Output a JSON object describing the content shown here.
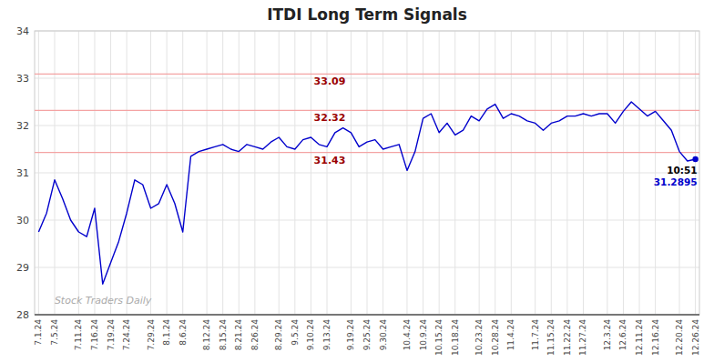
{
  "chart_data": {
    "type": "line",
    "title": "ITDI Long Term Signals",
    "categories": [
      "7.1.24",
      null,
      "7.5.24",
      null,
      null,
      "7.11.24",
      null,
      "7.16.24",
      null,
      "7.19.24",
      null,
      "7.24.24",
      null,
      null,
      "7.29.24",
      null,
      "8.1.24",
      null,
      "8.6.24",
      null,
      null,
      "8.12.24",
      null,
      "8.15.24",
      null,
      "8.21.24",
      null,
      "8.26.24",
      null,
      null,
      "8.29.24",
      null,
      "9.5.24",
      null,
      "9.10.24",
      null,
      "9.13.24",
      null,
      null,
      "9.19.24",
      null,
      "9.25.24",
      null,
      "9.30.24",
      null,
      null,
      "10.4.24",
      null,
      "10.9.24",
      null,
      "10.15.24",
      null,
      "10.18.24",
      null,
      null,
      "10.23.24",
      null,
      "10.28.24",
      null,
      "11.4.24",
      null,
      null,
      "11.7.24",
      null,
      "11.15.24",
      null,
      "11.22.24",
      null,
      "11.27.24",
      null,
      null,
      "12.3.24",
      null,
      "12.6.24",
      null,
      "12.11.24",
      null,
      "12.16.24",
      null,
      null,
      "12.20.24",
      null,
      "12.26.24"
    ],
    "values": [
      29.75,
      30.15,
      30.85,
      30.45,
      30.0,
      29.75,
      29.65,
      30.25,
      28.65,
      29.1,
      29.55,
      30.15,
      30.85,
      30.75,
      30.25,
      30.35,
      30.75,
      30.35,
      29.75,
      31.35,
      31.45,
      31.5,
      31.55,
      31.6,
      31.5,
      31.45,
      31.6,
      31.55,
      31.5,
      31.65,
      31.75,
      31.55,
      31.5,
      31.7,
      31.75,
      31.6,
      31.55,
      31.85,
      31.95,
      31.85,
      31.55,
      31.65,
      31.7,
      31.5,
      31.55,
      31.6,
      31.05,
      31.45,
      32.15,
      32.25,
      31.85,
      32.05,
      31.8,
      31.9,
      32.2,
      32.1,
      32.35,
      32.45,
      32.15,
      32.25,
      32.2,
      32.1,
      32.05,
      31.9,
      32.05,
      32.1,
      32.2,
      32.2,
      32.25,
      32.2,
      32.25,
      32.25,
      32.05,
      32.3,
      32.5,
      32.35,
      32.2,
      32.3,
      32.1,
      31.9,
      31.45,
      31.25,
      31.2895
    ],
    "color": "#0000cc",
    "ylim": [
      28,
      34
    ],
    "yticks": [
      28,
      29,
      30,
      31,
      32,
      33,
      34
    ],
    "grid": true,
    "reference_lines": [
      {
        "value": 33.09,
        "label": "33.09"
      },
      {
        "value": 32.32,
        "label": "32.32"
      },
      {
        "value": 31.43,
        "label": "31.43"
      }
    ],
    "annotations": [
      {
        "text": "10:51"
      },
      {
        "text": "31.2895"
      }
    ],
    "watermark": "Stock Traders Daily"
  }
}
